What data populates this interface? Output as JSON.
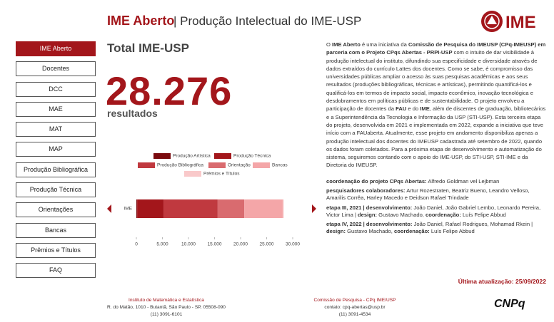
{
  "header": {
    "title": "IME Aberto",
    "subtitle": "| Produção Intelectual do IME-USP"
  },
  "logo": {
    "text": "IME"
  },
  "nav": [
    "IME Aberto",
    "Docentes",
    "DCC",
    "MAE",
    "MAT",
    "MAP",
    "Produção Bibliográfica",
    "Produção Técnica",
    "Orientações",
    "Bancas",
    "Prêmios e Títulos",
    "FAQ"
  ],
  "summary": {
    "title": "Total IME-USP",
    "total": "28.276",
    "unit": "resultados"
  },
  "chart_data": {
    "type": "stacked_barh",
    "categories": [
      "IME"
    ],
    "series": [
      {
        "name": "Produção Artística",
        "color": "#7a0a0e",
        "values": [
          150
        ]
      },
      {
        "name": "Produção Técnica",
        "color": "#a3161b",
        "values": [
          5050
        ]
      },
      {
        "name": "Produção Bibliográfica",
        "color": "#c0393f",
        "values": [
          10400
        ]
      },
      {
        "name": "Orientação",
        "color": "#d96b6f",
        "values": [
          5100
        ]
      },
      {
        "name": "Bancas",
        "color": "#f4a6a8",
        "values": [
          7376
        ]
      },
      {
        "name": "Prêmios e Títulos",
        "color": "#f9c9ca",
        "values": [
          200
        ]
      }
    ],
    "xlim": [
      0,
      30000
    ],
    "xticks": [
      0,
      {
        "value": 5000,
        "label": "5.000"
      },
      {
        "value": 10000,
        "label": "10.000"
      },
      {
        "value": 15000,
        "label": "15.000"
      },
      {
        "value": 20000,
        "label": "20.000"
      },
      {
        "value": 25000,
        "label": "25.000"
      },
      {
        "value": 30000,
        "label": "30.000"
      }
    ]
  },
  "about": {
    "runs": [
      {
        "text": "O "
      },
      {
        "text": "IME Aberto",
        "bold": true
      },
      {
        "text": " é uma iniciativa da "
      },
      {
        "text": "Comissão de Pesquisa do IMEUSP (CPq-IMEUSP) em parceria com o Projeto CPqs Abertas - PRPI-USP",
        "bold": true
      },
      {
        "text": " com o intuito de dar visibilidade à produção intelectual do instituto, difundindo sua especificidade e diversidade através de dados extraídos do currículo Lattes dos docentes. Como se sabe, é compromisso das universidades públicas ampliar o acesso às suas pesquisas acadêmicas e aos seus resultados (produções bibliográficas, técnicas e artísticas), permitindo quantificá-los e qualificá-los em termos de impacto social, impacto econômico, inovação tecnológica e desdobramentos em políticas públicas e de sustentabilidade. O projeto envolveu a participação de docentes da "
      },
      {
        "text": "FAU",
        "bold": true
      },
      {
        "text": " e do "
      },
      {
        "text": "IME",
        "bold": true
      },
      {
        "text": ", além de discentes de graduação, bibliotecários e a Superintendência da Tecnologia e Informação da USP (STI-USP). Esta terceira etapa do projeto, desenvolvida em 2021 e implementada em 2022, expande a iniciativa que teve início com a FAUaberta. Atualmente, esse projeto em andamento disponibiliza apenas a produção intelectual dos docentes do IMEUSP cadastrada até setembro de 2022, quando os dados foram coletados. Para a próxima etapa de desenvolvimento e automatização do sistema, seguiremos contando com o apoio do IME-USP, do STI-USP, STI-IME e da Diretoria do IMEUSP."
      }
    ]
  },
  "credits": [
    {
      "runs": [
        {
          "text": "coordenação do projeto CPqs Abertas:",
          "bold": true
        },
        {
          "text": " Alfredo Goldman vel Lejbman"
        }
      ]
    },
    {
      "runs": [
        {
          "text": "pesquisadores colaboradores:",
          "bold": true
        },
        {
          "text": " Artur Rozestraten, Beatriz Bueno, Leandro Velloso, Amarilis Corrêa, Harley Macedo e Deidson Rafael Trindade"
        }
      ]
    },
    {
      "runs": [
        {
          "text": "etapa III, 2021 | desenvolvimento:",
          "bold": true
        },
        {
          "text": " João Daniel, João Gabriel Lembo, Leonardo Pereira, Victor Lima | "
        },
        {
          "text": "design:",
          "bold": true
        },
        {
          "text": " Gustavo Machado, "
        },
        {
          "text": "coordenação:",
          "bold": true
        },
        {
          "text": " Luís Felipe Abbud"
        }
      ]
    },
    {
      "runs": [
        {
          "text": "etapa IV, 2022 | desenvolvimento:",
          "bold": true
        },
        {
          "text": " João Daniel, Rafael Rodrigues, Mohamad Rkein | "
        },
        {
          "text": "design:",
          "bold": true
        },
        {
          "text": " Gustavo Machado, "
        },
        {
          "text": "coordenação:",
          "bold": true
        },
        {
          "text": " Luís Felipe Abbud"
        }
      ]
    }
  ],
  "last_update": "Última atualização: 25/09/2022",
  "footer": {
    "left": [
      "Instituto de Matemática e Estatística",
      "R. do Matão, 1010 - Butantã, São Paulo - SP, 05508-090",
      "(11) 3091-6101"
    ],
    "right": [
      "Comissão de Pesquisa - CPq IME/USP",
      "contato: cpq-abertas@usp.br",
      "(11) 3091-4534"
    ],
    "brand": "CNPq"
  }
}
